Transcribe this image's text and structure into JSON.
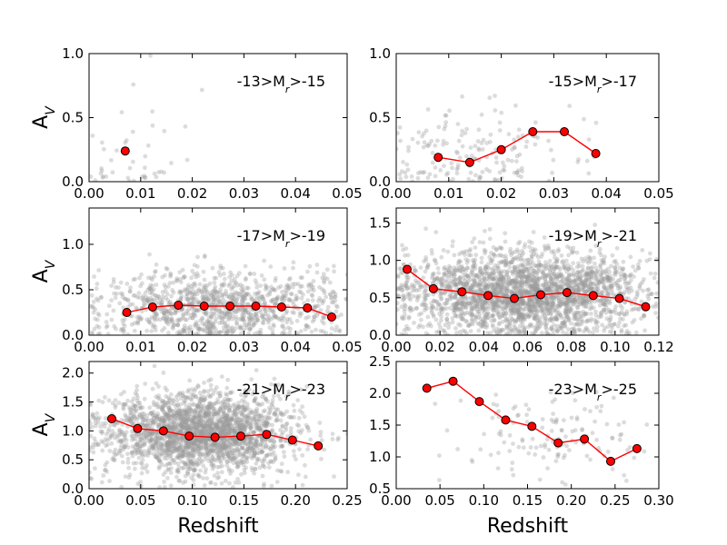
{
  "chart_data": [
    {
      "type": "scatter",
      "panel": "top-left",
      "annotation": {
        "pre": "-13>M",
        "sub": "r",
        "post": ">-15"
      },
      "xlim": [
        0.0,
        0.05
      ],
      "ylim": [
        0.0,
        1.0
      ],
      "xticks": [
        "0.00",
        "0.01",
        "0.02",
        "0.03",
        "0.04",
        "0.05"
      ],
      "yticks": [
        "0.0",
        "0.5",
        "1.0"
      ],
      "ylabel": "A",
      "ylabel_sub": "V",
      "xlabel": "",
      "binned": {
        "x": [
          0.007
        ],
        "y": [
          0.24
        ]
      },
      "scatter": {
        "n": 45,
        "center": [
          0.008,
          0.22
        ],
        "spread": [
          0.006,
          0.25
        ],
        "seed": 11
      }
    },
    {
      "type": "scatter",
      "panel": "top-right",
      "annotation": {
        "pre": "-15>M",
        "sub": "r",
        "post": ">-17"
      },
      "xlim": [
        0.0,
        0.05
      ],
      "ylim": [
        0.0,
        1.0
      ],
      "xticks": [
        "0.00",
        "0.01",
        "0.02",
        "0.03",
        "0.04",
        "0.05"
      ],
      "yticks": [
        "0.0",
        "0.5",
        "1.0"
      ],
      "ylabel": "",
      "ylabel_sub": "",
      "xlabel": "",
      "binned": {
        "x": [
          0.008,
          0.014,
          0.02,
          0.026,
          0.032,
          0.038
        ],
        "y": [
          0.19,
          0.15,
          0.25,
          0.39,
          0.39,
          0.22
        ]
      },
      "scatter": {
        "n": 170,
        "center": [
          0.016,
          0.22
        ],
        "spread": [
          0.009,
          0.18
        ],
        "seed": 23
      }
    },
    {
      "type": "scatter",
      "panel": "middle-left",
      "annotation": {
        "pre": "-17>M",
        "sub": "r",
        "post": ">-19"
      },
      "xlim": [
        0.0,
        0.05
      ],
      "ylim": [
        0.0,
        1.4
      ],
      "xticks": [
        "0.00",
        "0.01",
        "0.02",
        "0.03",
        "0.04",
        "0.05"
      ],
      "yticks": [
        "0.0",
        "0.5",
        "1.0"
      ],
      "ylabel": "A",
      "ylabel_sub": "V",
      "xlabel": "",
      "binned": {
        "x": [
          0.0073,
          0.0123,
          0.0173,
          0.0223,
          0.0273,
          0.0323,
          0.0373,
          0.0423,
          0.047
        ],
        "y": [
          0.25,
          0.31,
          0.33,
          0.32,
          0.32,
          0.32,
          0.31,
          0.3,
          0.2
        ]
      },
      "scatter": {
        "n": 1100,
        "center": [
          0.026,
          0.32
        ],
        "spread": [
          0.012,
          0.2
        ],
        "seed": 37
      }
    },
    {
      "type": "scatter",
      "panel": "middle-right",
      "annotation": {
        "pre": "-19>M",
        "sub": "r",
        "post": ">-21"
      },
      "xlim": [
        0.0,
        0.12
      ],
      "ylim": [
        0.0,
        1.7
      ],
      "xticks": [
        "0.00",
        "0.02",
        "0.04",
        "0.06",
        "0.08",
        "0.10",
        "0.12"
      ],
      "yticks": [
        "0.0",
        "0.5",
        "1.0",
        "1.5"
      ],
      "ylabel": "",
      "ylabel_sub": "",
      "xlabel": "",
      "binned": {
        "x": [
          0.005,
          0.017,
          0.03,
          0.042,
          0.054,
          0.066,
          0.078,
          0.09,
          0.102,
          0.114
        ],
        "y": [
          0.88,
          0.62,
          0.58,
          0.53,
          0.49,
          0.54,
          0.57,
          0.53,
          0.49,
          0.38
        ]
      },
      "scatter": {
        "n": 2600,
        "center": [
          0.06,
          0.55
        ],
        "spread": [
          0.028,
          0.28
        ],
        "seed": 53
      }
    },
    {
      "type": "scatter",
      "panel": "bottom-left",
      "annotation": {
        "pre": "-21>M",
        "sub": "r",
        "post": ">-23"
      },
      "xlim": [
        0.0,
        0.25
      ],
      "ylim": [
        0.0,
        2.2
      ],
      "xticks": [
        "0.00",
        "0.05",
        "0.10",
        "0.15",
        "0.20",
        "0.25"
      ],
      "yticks": [
        "0.0",
        "0.5",
        "1.0",
        "1.5",
        "2.0"
      ],
      "ylabel": "A",
      "ylabel_sub": "V",
      "xlabel": "Redshift",
      "binned": {
        "x": [
          0.022,
          0.047,
          0.072,
          0.097,
          0.122,
          0.147,
          0.172,
          0.197,
          0.222
        ],
        "y": [
          1.21,
          1.04,
          1.0,
          0.91,
          0.89,
          0.91,
          0.94,
          0.84,
          0.74
        ]
      },
      "scatter": {
        "n": 2400,
        "center": [
          0.11,
          0.95
        ],
        "spread": [
          0.045,
          0.35
        ],
        "seed": 71
      }
    },
    {
      "type": "scatter",
      "panel": "bottom-right",
      "annotation": {
        "pre": "-23>M",
        "sub": "r",
        "post": ">-25"
      },
      "xlim": [
        0.0,
        0.3
      ],
      "ylim": [
        0.5,
        2.5
      ],
      "xticks": [
        "0.00",
        "0.05",
        "0.10",
        "0.15",
        "0.20",
        "0.25",
        "0.30"
      ],
      "yticks": [
        "0.5",
        "1.0",
        "1.5",
        "2.0",
        "2.5"
      ],
      "ylabel": "",
      "ylabel_sub": "",
      "xlabel": "Redshift",
      "binned": {
        "x": [
          0.035,
          0.065,
          0.095,
          0.125,
          0.155,
          0.185,
          0.215,
          0.245,
          0.275
        ],
        "y": [
          2.08,
          2.19,
          1.87,
          1.58,
          1.48,
          1.22,
          1.28,
          0.93,
          1.13
        ]
      },
      "scatter": {
        "n": 140,
        "center": [
          0.17,
          1.3
        ],
        "spread": [
          0.06,
          0.35
        ],
        "seed": 97
      }
    }
  ]
}
